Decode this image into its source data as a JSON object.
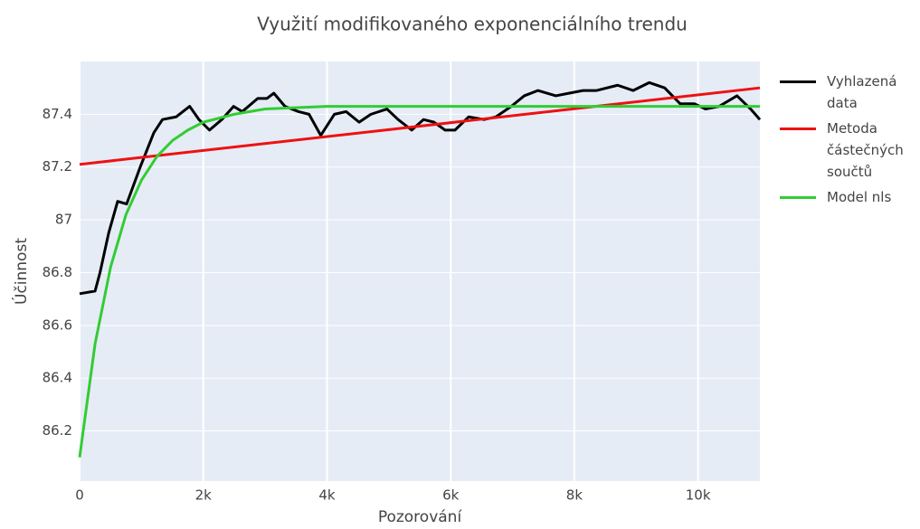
{
  "chart_data": {
    "type": "line",
    "title": "Využití modifikovaného exponenciálního trendu",
    "x_label": "Pozorování",
    "y_label": "Účinnost",
    "xlim": [
      0,
      11000
    ],
    "ylim": [
      86.01,
      87.6
    ],
    "xticks": [
      0,
      {
        "value": 2000,
        "label": "2k"
      },
      {
        "value": 4000,
        "label": "4k"
      },
      {
        "value": 6000,
        "label": "6k"
      },
      {
        "value": 8000,
        "label": "8k"
      },
      {
        "value": 10000,
        "label": "10k"
      }
    ],
    "yticks": [
      86.2,
      86.4,
      86.6,
      86.8,
      87,
      87.2,
      87.4
    ],
    "grid": true,
    "series": [
      {
        "name": "Vyhlazená data",
        "color": "#000000",
        "x": [
          0,
          250,
          330,
          470,
          615,
          760,
          980,
          1200,
          1340,
          1560,
          1780,
          1930,
          2100,
          2300,
          2490,
          2630,
          2880,
          3030,
          3140,
          3320,
          3540,
          3710,
          3900,
          4120,
          4310,
          4520,
          4710,
          4970,
          5150,
          5370,
          5560,
          5730,
          5910,
          6070,
          6290,
          6540,
          6730,
          6980,
          7190,
          7410,
          7700,
          7920,
          8140,
          8360,
          8700,
          8950,
          9210,
          9460,
          9710,
          9940,
          10120,
          10340,
          10630,
          10850,
          11000
        ],
        "values": [
          86.72,
          86.73,
          86.8,
          86.95,
          87.07,
          87.06,
          87.2,
          87.33,
          87.38,
          87.39,
          87.43,
          87.38,
          87.34,
          87.38,
          87.43,
          87.41,
          87.46,
          87.46,
          87.48,
          87.43,
          87.41,
          87.4,
          87.32,
          87.4,
          87.41,
          87.37,
          87.4,
          87.42,
          87.38,
          87.34,
          87.38,
          87.37,
          87.34,
          87.34,
          87.39,
          87.38,
          87.39,
          87.43,
          87.47,
          87.49,
          87.47,
          87.48,
          87.49,
          87.49,
          87.51,
          87.49,
          87.52,
          87.5,
          87.44,
          87.44,
          87.42,
          87.43,
          87.47,
          87.42,
          87.38
        ]
      },
      {
        "name": "Metoda částečných součtů",
        "color": "#ee1111",
        "x": [
          0,
          11000
        ],
        "values": [
          87.21,
          87.5
        ]
      },
      {
        "name": "Model nls",
        "color": "#33cc33",
        "x": [
          0,
          250,
          500,
          750,
          1000,
          1250,
          1500,
          1750,
          2000,
          2500,
          3000,
          4000,
          11000
        ],
        "values": [
          86.1,
          86.53,
          86.82,
          87.02,
          87.15,
          87.24,
          87.3,
          87.34,
          87.37,
          87.4,
          87.42,
          87.43,
          87.43
        ]
      }
    ]
  }
}
